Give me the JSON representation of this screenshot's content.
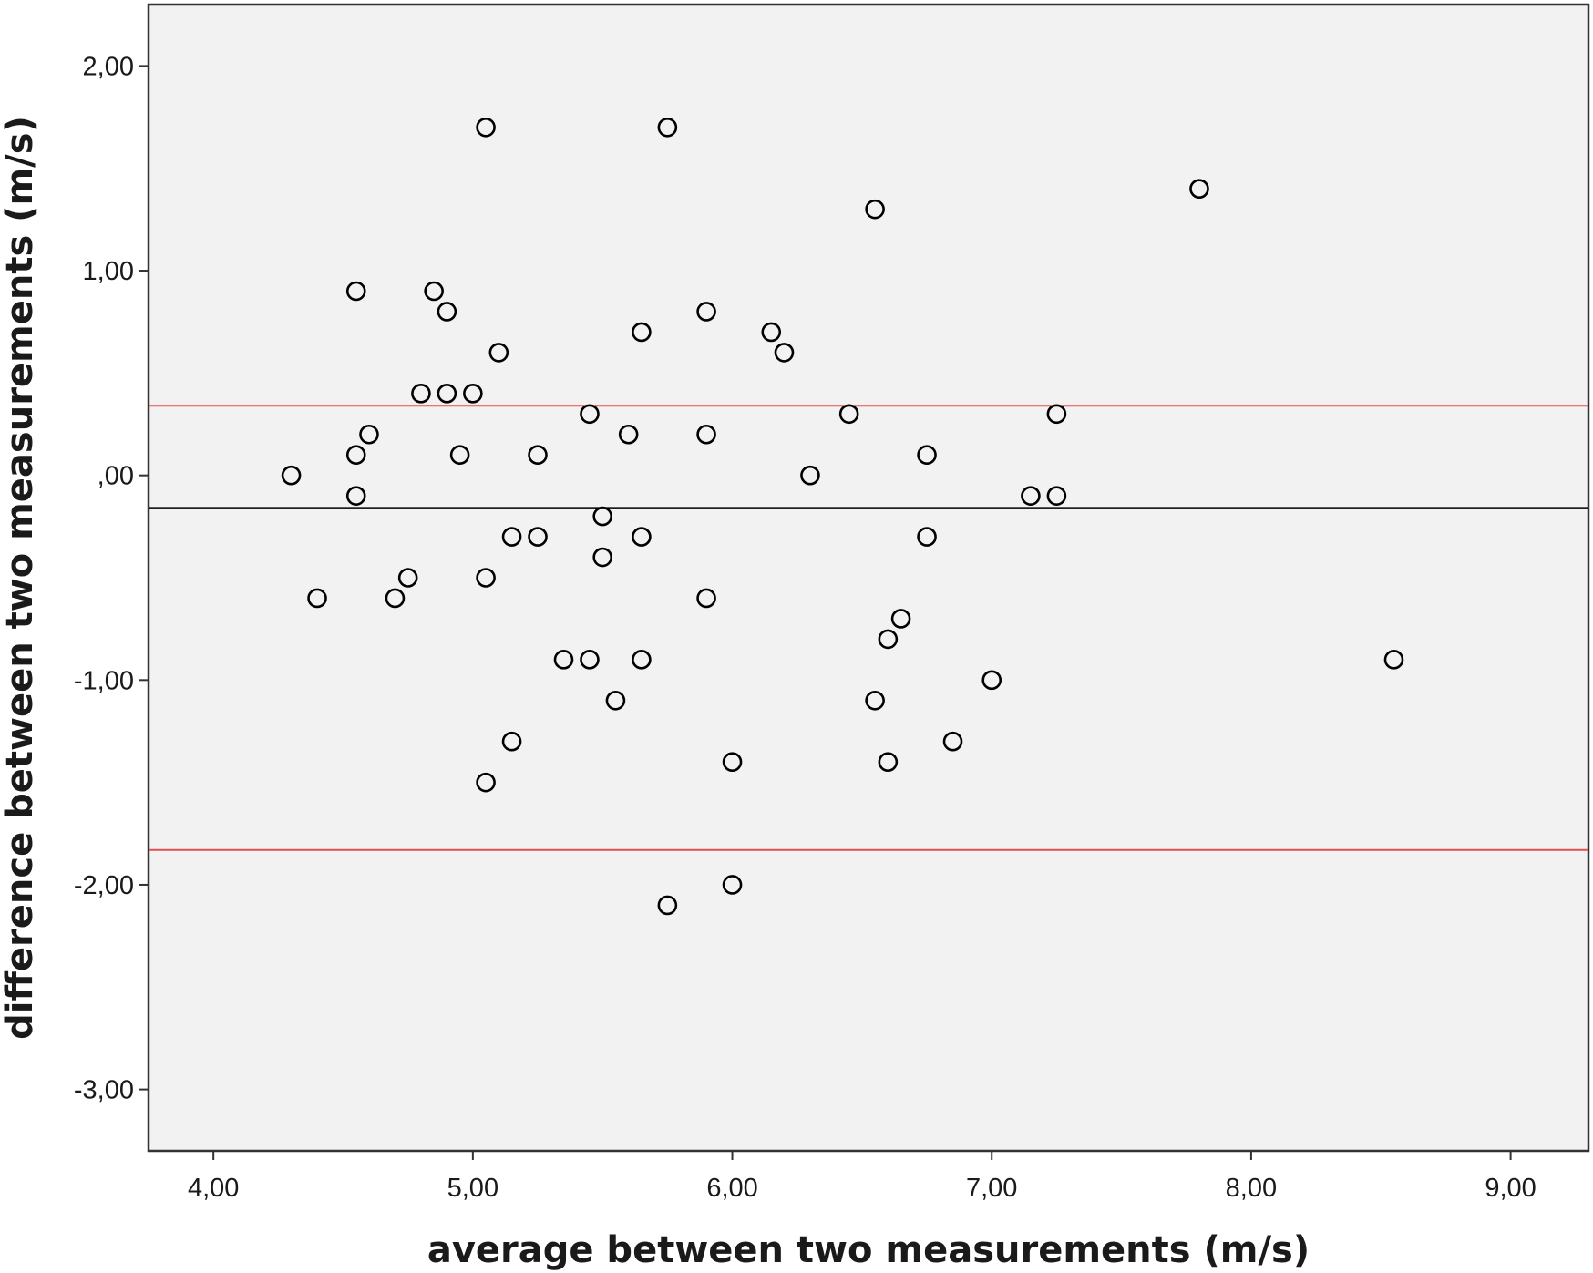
{
  "chart_data": {
    "type": "scatter",
    "title": "",
    "xlabel": "average between two measurements (m/s)",
    "ylabel": "difference between two measurements (m/s)",
    "xlim": [
      3.75,
      9.3
    ],
    "ylim": [
      -3.3,
      2.3
    ],
    "x_ticks": [
      4,
      5,
      6,
      7,
      8,
      9
    ],
    "x_tick_labels": [
      "4,00",
      "5,00",
      "6,00",
      "7,00",
      "8,00",
      "9,00"
    ],
    "y_ticks": [
      2,
      1,
      0,
      -1,
      -2,
      -3
    ],
    "y_tick_labels": [
      "2,00",
      "1,00",
      ",00",
      "-1,00",
      "-2,00",
      "-3,00"
    ],
    "grid": false,
    "legend": "none",
    "plot_background": "#f2f2f2",
    "marker_color": "#000000",
    "reference_lines": [
      {
        "y": 0.34,
        "color": "#e05050"
      },
      {
        "y": -0.16,
        "color": "#000000"
      },
      {
        "y": -1.83,
        "color": "#e05050"
      }
    ],
    "points": [
      [
        5.05,
        1.7
      ],
      [
        5.75,
        1.7
      ],
      [
        7.8,
        1.4
      ],
      [
        6.55,
        1.3
      ],
      [
        4.55,
        0.9
      ],
      [
        4.85,
        0.9
      ],
      [
        4.9,
        0.8
      ],
      [
        5.9,
        0.8
      ],
      [
        5.65,
        0.7
      ],
      [
        6.15,
        0.7
      ],
      [
        5.1,
        0.6
      ],
      [
        6.2,
        0.6
      ],
      [
        4.8,
        0.4
      ],
      [
        4.9,
        0.4
      ],
      [
        5.0,
        0.4
      ],
      [
        5.45,
        0.3
      ],
      [
        6.45,
        0.3
      ],
      [
        7.25,
        0.3
      ],
      [
        4.6,
        0.2
      ],
      [
        5.6,
        0.2
      ],
      [
        5.9,
        0.2
      ],
      [
        4.55,
        0.1
      ],
      [
        4.95,
        0.1
      ],
      [
        5.25,
        0.1
      ],
      [
        6.75,
        0.1
      ],
      [
        4.3,
        0.0
      ],
      [
        6.3,
        0.0
      ],
      [
        4.55,
        -0.1
      ],
      [
        7.15,
        -0.1
      ],
      [
        7.25,
        -0.1
      ],
      [
        5.5,
        -0.2
      ],
      [
        5.15,
        -0.3
      ],
      [
        5.25,
        -0.3
      ],
      [
        5.65,
        -0.3
      ],
      [
        6.75,
        -0.3
      ],
      [
        5.5,
        -0.4
      ],
      [
        4.75,
        -0.5
      ],
      [
        5.05,
        -0.5
      ],
      [
        4.4,
        -0.6
      ],
      [
        4.7,
        -0.6
      ],
      [
        5.9,
        -0.6
      ],
      [
        6.65,
        -0.7
      ],
      [
        6.6,
        -0.8
      ],
      [
        5.35,
        -0.9
      ],
      [
        5.45,
        -0.9
      ],
      [
        5.65,
        -0.9
      ],
      [
        8.55,
        -0.9
      ],
      [
        7.0,
        -1.0
      ],
      [
        5.55,
        -1.1
      ],
      [
        6.55,
        -1.1
      ],
      [
        5.15,
        -1.3
      ],
      [
        6.85,
        -1.3
      ],
      [
        6.0,
        -1.4
      ],
      [
        6.6,
        -1.4
      ],
      [
        5.05,
        -1.5
      ],
      [
        6.0,
        -2.0
      ],
      [
        5.75,
        -2.1
      ]
    ]
  }
}
